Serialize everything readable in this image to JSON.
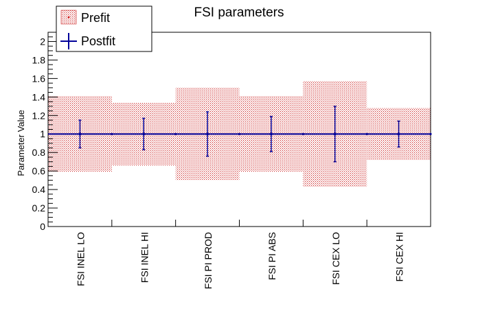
{
  "chart_data": {
    "type": "bar",
    "title": "FSI parameters",
    "xlabel": "",
    "ylabel": "Parameter Value",
    "ylim": [
      0,
      2.1
    ],
    "yticks": [
      0,
      0.2,
      0.4,
      0.6,
      0.8,
      1,
      1.2,
      1.4,
      1.6,
      1.8,
      2
    ],
    "ytick_labels": [
      "0",
      "0.2",
      "0.4",
      "0.6",
      "0.8",
      "1",
      "1.2",
      "1.4",
      "1.6",
      "1.8",
      "2"
    ],
    "categories": [
      "FSI INEL LO",
      "FSI INEL HI",
      "FSI PI PROD",
      "FSI PI ABS",
      "FSI CEX LO",
      "FSI CEX HI"
    ],
    "legend_position": "top-left",
    "grid": false,
    "series": [
      {
        "name": "Prefit",
        "style": "hatched-band",
        "color": "#cc0000",
        "values": [
          1,
          1,
          1,
          1,
          1,
          1
        ],
        "errors": [
          0.41,
          0.34,
          0.5,
          0.41,
          0.57,
          0.28
        ]
      },
      {
        "name": "Postfit",
        "style": "points-with-errorbars",
        "color": "#000099",
        "values": [
          1.0,
          1.0,
          1.0,
          1.0,
          1.0,
          1.0
        ],
        "errors": [
          0.15,
          0.17,
          0.24,
          0.19,
          0.3,
          0.14
        ]
      }
    ]
  }
}
